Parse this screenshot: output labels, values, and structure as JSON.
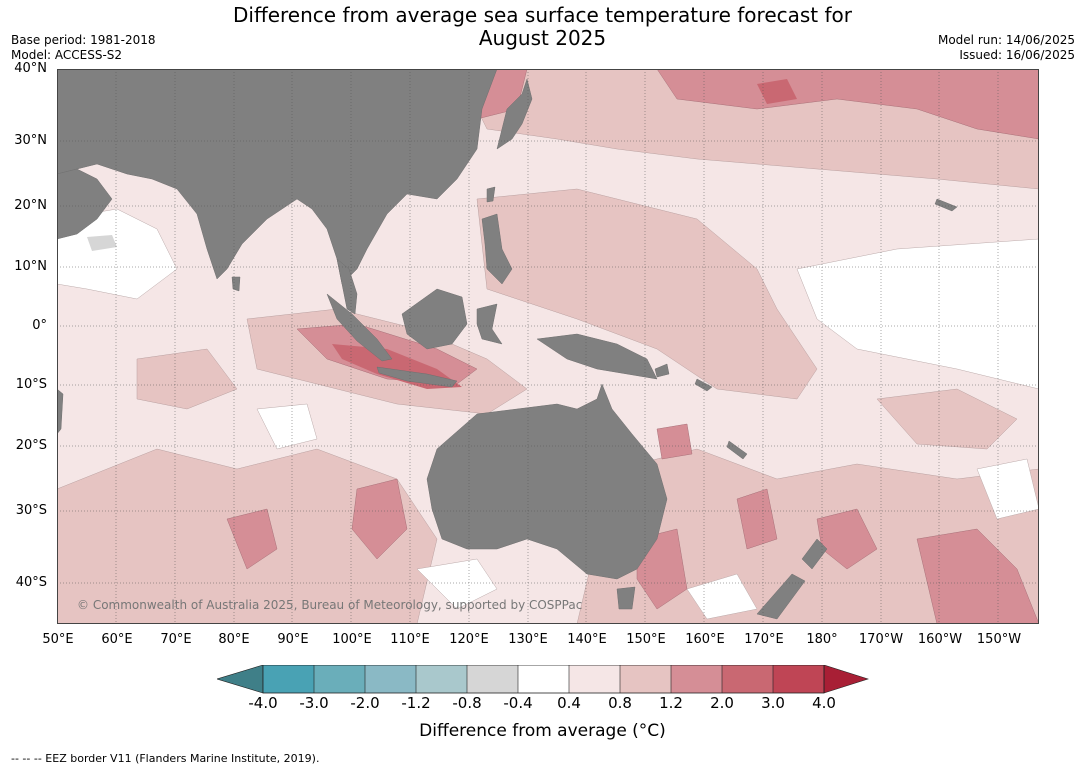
{
  "title_line1": "Difference from average sea surface temperature forecast for",
  "title_line2": "August 2025",
  "base_period": "Base period: 1981-2018",
  "model": "Model: ACCESS-S2",
  "model_run": "Model run: 14/06/2025",
  "issued": "Issued: 16/06/2025",
  "credit": "© Commonwealth of Australia 2025, Bureau of Meteorology, supported by COSPPac",
  "lat_labels": [
    "40°N",
    "30°N",
    "20°N",
    "10°N",
    "0°",
    "10°S",
    "20°S",
    "30°S",
    "40°S"
  ],
  "lon_labels": [
    "50°E",
    "60°E",
    "70°E",
    "80°E",
    "90°E",
    "100°E",
    "110°E",
    "120°E",
    "130°E",
    "140°E",
    "150°E",
    "160°E",
    "170°E",
    "180°",
    "170°W",
    "160°W",
    "150°W"
  ],
  "colorbar": {
    "ticks": [
      "-4.0",
      "-3.0",
      "-2.0",
      "-1.2",
      "-0.8",
      "-0.4",
      "0.4",
      "0.8",
      "1.2",
      "2.0",
      "3.0",
      "4.0"
    ],
    "colors": [
      "#3f7f88",
      "#49a2b4",
      "#6aaeba",
      "#8ab9c5",
      "#a9c8cc",
      "#d6d6d6",
      "#ffffff",
      "#f5e6e6",
      "#e6c4c2",
      "#d58e96",
      "#c96872",
      "#bf4555",
      "#a81f35"
    ],
    "label": "Difference from average (°C)"
  },
  "footnote": "--  --  -- EEZ border V11 (Flanders Marine Institute, 2019).",
  "palette": {
    "land": "#808080",
    "ocean_base": "#f5e6e6",
    "band_08_12": "#e6c4c2",
    "band_12_20": "#d58e96",
    "band_20_30": "#c96872",
    "band_near_zero": "#ffffff"
  }
}
